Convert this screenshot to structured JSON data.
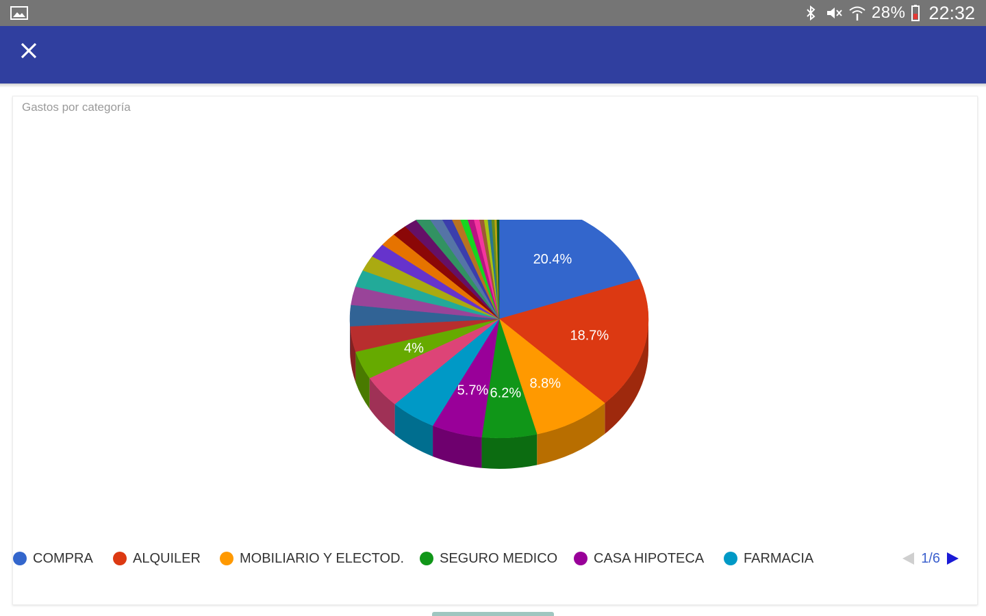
{
  "status_bar": {
    "battery": "28%",
    "time": "22:32",
    "icons": [
      "gallery-icon",
      "bluetooth-icon",
      "mute-icon",
      "wifi-icon",
      "battery-low-icon"
    ]
  },
  "app_bar": {
    "color": "#303f9f",
    "close_icon": "close-icon"
  },
  "chart_data": {
    "type": "pie",
    "title": "Gastos por categoría",
    "style": "3d",
    "slices": [
      {
        "label": "COMPRA",
        "value": 20.4,
        "color": "#3366cc",
        "shown_label": "20.4%"
      },
      {
        "label": "ALQUILER",
        "value": 18.7,
        "color": "#dc3912",
        "shown_label": "18.7%"
      },
      {
        "label": "MOBILIARIO Y ELECTOD.",
        "value": 8.8,
        "color": "#ff9900",
        "shown_label": "8.8%"
      },
      {
        "label": "SEGURO MEDICO",
        "value": 6.2,
        "color": "#109618",
        "shown_label": "6.2%"
      },
      {
        "label": "CASA HIPOTECA",
        "value": 5.7,
        "color": "#990099",
        "shown_label": "5.7%"
      },
      {
        "label": "FARMACIA",
        "value": 5.2,
        "color": "#0099c6",
        "shown_label": ""
      },
      {
        "label": "",
        "value": 4.6,
        "color": "#dd4477",
        "shown_label": ""
      },
      {
        "label": "",
        "value": 4.0,
        "color": "#66aa00",
        "shown_label": "4%"
      },
      {
        "label": "",
        "value": 3.6,
        "color": "#b82e2e",
        "shown_label": ""
      },
      {
        "label": "",
        "value": 3.0,
        "color": "#316395",
        "shown_label": ""
      },
      {
        "label": "",
        "value": 2.6,
        "color": "#994499",
        "shown_label": ""
      },
      {
        "label": "",
        "value": 2.4,
        "color": "#22aa99",
        "shown_label": ""
      },
      {
        "label": "",
        "value": 2.2,
        "color": "#aaaa11",
        "shown_label": ""
      },
      {
        "label": "",
        "value": 2.0,
        "color": "#6633cc",
        "shown_label": ""
      },
      {
        "label": "",
        "value": 1.9,
        "color": "#e67300",
        "shown_label": ""
      },
      {
        "label": "",
        "value": 1.7,
        "color": "#8b0707",
        "shown_label": ""
      },
      {
        "label": "",
        "value": 1.5,
        "color": "#651067",
        "shown_label": ""
      },
      {
        "label": "",
        "value": 1.4,
        "color": "#329262",
        "shown_label": ""
      },
      {
        "label": "",
        "value": 1.3,
        "color": "#5574a6",
        "shown_label": ""
      },
      {
        "label": "",
        "value": 1.1,
        "color": "#3b3eac",
        "shown_label": ""
      },
      {
        "label": "",
        "value": 1.0,
        "color": "#b77322",
        "shown_label": ""
      },
      {
        "label": "",
        "value": 0.9,
        "color": "#16d620",
        "shown_label": ""
      },
      {
        "label": "",
        "value": 0.8,
        "color": "#b91383",
        "shown_label": ""
      },
      {
        "label": "",
        "value": 0.7,
        "color": "#f4359e",
        "shown_label": ""
      },
      {
        "label": "",
        "value": 0.6,
        "color": "#9c5935",
        "shown_label": ""
      },
      {
        "label": "",
        "value": 0.5,
        "color": "#a9c413",
        "shown_label": ""
      },
      {
        "label": "",
        "value": 0.5,
        "color": "#2a778d",
        "shown_label": ""
      },
      {
        "label": "",
        "value": 0.4,
        "color": "#668d1c",
        "shown_label": ""
      },
      {
        "label": "",
        "value": 0.3,
        "color": "#bea413",
        "shown_label": ""
      },
      {
        "label": "",
        "value": 0.3,
        "color": "#0c5922",
        "shown_label": ""
      }
    ]
  },
  "legend": {
    "items": [
      {
        "label": "COMPRA",
        "color": "#3366cc"
      },
      {
        "label": "ALQUILER",
        "color": "#dc3912"
      },
      {
        "label": "MOBILIARIO Y ELECTOD.",
        "color": "#ff9900"
      },
      {
        "label": "SEGURO MEDICO",
        "color": "#109618"
      },
      {
        "label": "CASA HIPOTECA",
        "color": "#990099"
      },
      {
        "label": "FARMACIA",
        "color": "#0099c6"
      }
    ],
    "page": "1/6"
  }
}
